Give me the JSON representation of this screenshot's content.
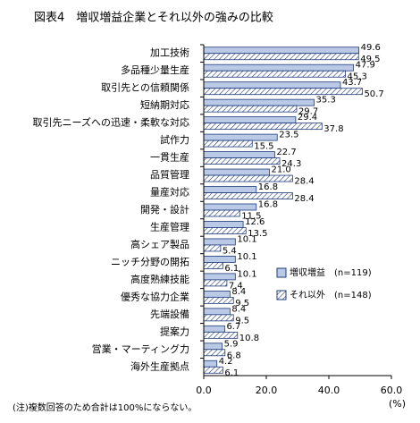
{
  "chart_data": {
    "type": "hbar",
    "title": "図表4　増収増益企業とそれ以外の強みの比較",
    "note": "(注)複数回答のため合計は100%にならない。",
    "unit": "(%)",
    "categories": [
      "加工技術",
      "多品種少量生産",
      "取引先との信頼関係",
      "短納期対応",
      "取引先ニーズへの迅速・柔軟な対応",
      "試作力",
      "一貫生産",
      "品質管理",
      "量産対応",
      "開発・設計",
      "生産管理",
      "高シェア製品",
      "ニッチ分野の開拓",
      "高度熟練技能",
      "優秀な協力企業",
      "先端設備",
      "提案力",
      "営業・マーティング力",
      "海外生産拠点"
    ],
    "series": [
      {
        "name": "増収増益　(n=119)",
        "color": "#b9c9e6",
        "pattern": "solid",
        "values": [
          49.6,
          47.9,
          43.7,
          35.3,
          29.4,
          23.5,
          22.7,
          21.0,
          16.8,
          16.8,
          12.6,
          10.1,
          10.1,
          10.1,
          8.4,
          8.4,
          6.7,
          5.9,
          4.2
        ],
        "value_labels": [
          "49.6",
          "47.9",
          "43.7",
          "35.3",
          "29.4",
          "23.5",
          "22.7",
          "21.0",
          "16.8",
          "16.8",
          "12.6",
          "10.1",
          "10.1",
          "10.1",
          "8.4",
          "8.4",
          "6.7",
          "5.9",
          "4.2"
        ]
      },
      {
        "name": "それ以外　(n=148)",
        "color": "#ffffff",
        "pattern": "hatch",
        "values": [
          49.5,
          45.3,
          50.7,
          29.7,
          37.8,
          15.5,
          24.3,
          28.4,
          28.4,
          11.5,
          13.5,
          5.4,
          6.1,
          7.4,
          9.5,
          9.5,
          10.8,
          6.8,
          6.1
        ],
        "value_labels": [
          "49.5",
          "45.3",
          "50.7",
          "29.7",
          "37.8",
          "15.5",
          "24.3",
          "28.4",
          "28.4",
          "11.5",
          "13.5",
          "5.4",
          "6.1",
          "7.4",
          "9.5",
          "9.5",
          "10.8",
          "6.8",
          "6.1"
        ]
      }
    ],
    "xlim": [
      0,
      60
    ],
    "xticks": [
      {
        "value": 0,
        "label": "0.0"
      },
      {
        "value": 20,
        "label": "20.0"
      },
      {
        "value": 40,
        "label": "40.0"
      },
      {
        "value": 60,
        "label": "60.0"
      }
    ],
    "legend": "right"
  }
}
